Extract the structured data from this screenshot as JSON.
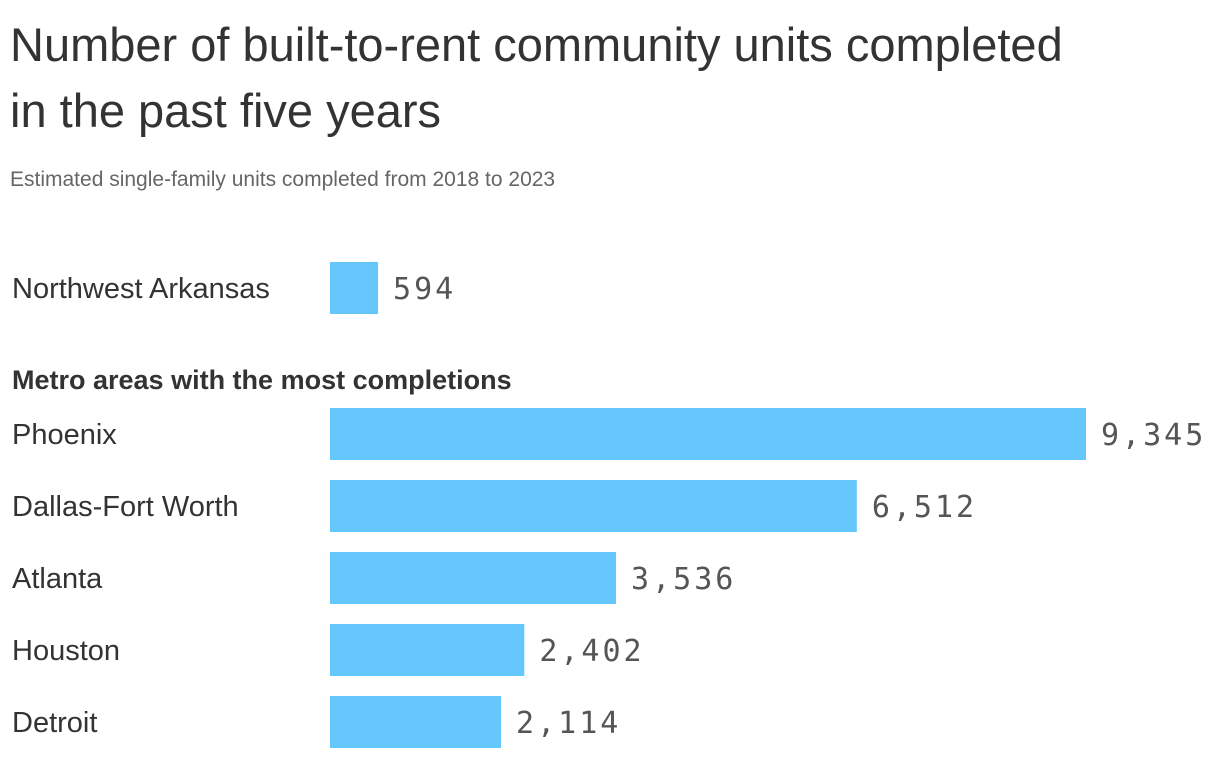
{
  "chart_data": {
    "type": "bar",
    "orientation": "horizontal",
    "title": "Number of built-to-rent community units completed in the past five years",
    "subtitle": "Estimated single-family units completed from 2018 to 2023",
    "groups": [
      {
        "header": "",
        "categories": [
          "Northwest Arkansas"
        ],
        "values": [
          594
        ],
        "value_labels": [
          "594"
        ]
      },
      {
        "header": "Metro areas with the most completions",
        "categories": [
          "Phoenix",
          "Dallas-Fort Worth",
          "Atlanta",
          "Houston",
          "Detroit"
        ],
        "values": [
          9345,
          6512,
          3536,
          2402,
          2114
        ],
        "value_labels": [
          "9,345",
          "6,512",
          "3,536",
          "2,402",
          "2,114"
        ]
      }
    ],
    "xlim": [
      0,
      9345
    ],
    "grid": false,
    "legend": "none",
    "bar_color": "#66c7fc"
  }
}
